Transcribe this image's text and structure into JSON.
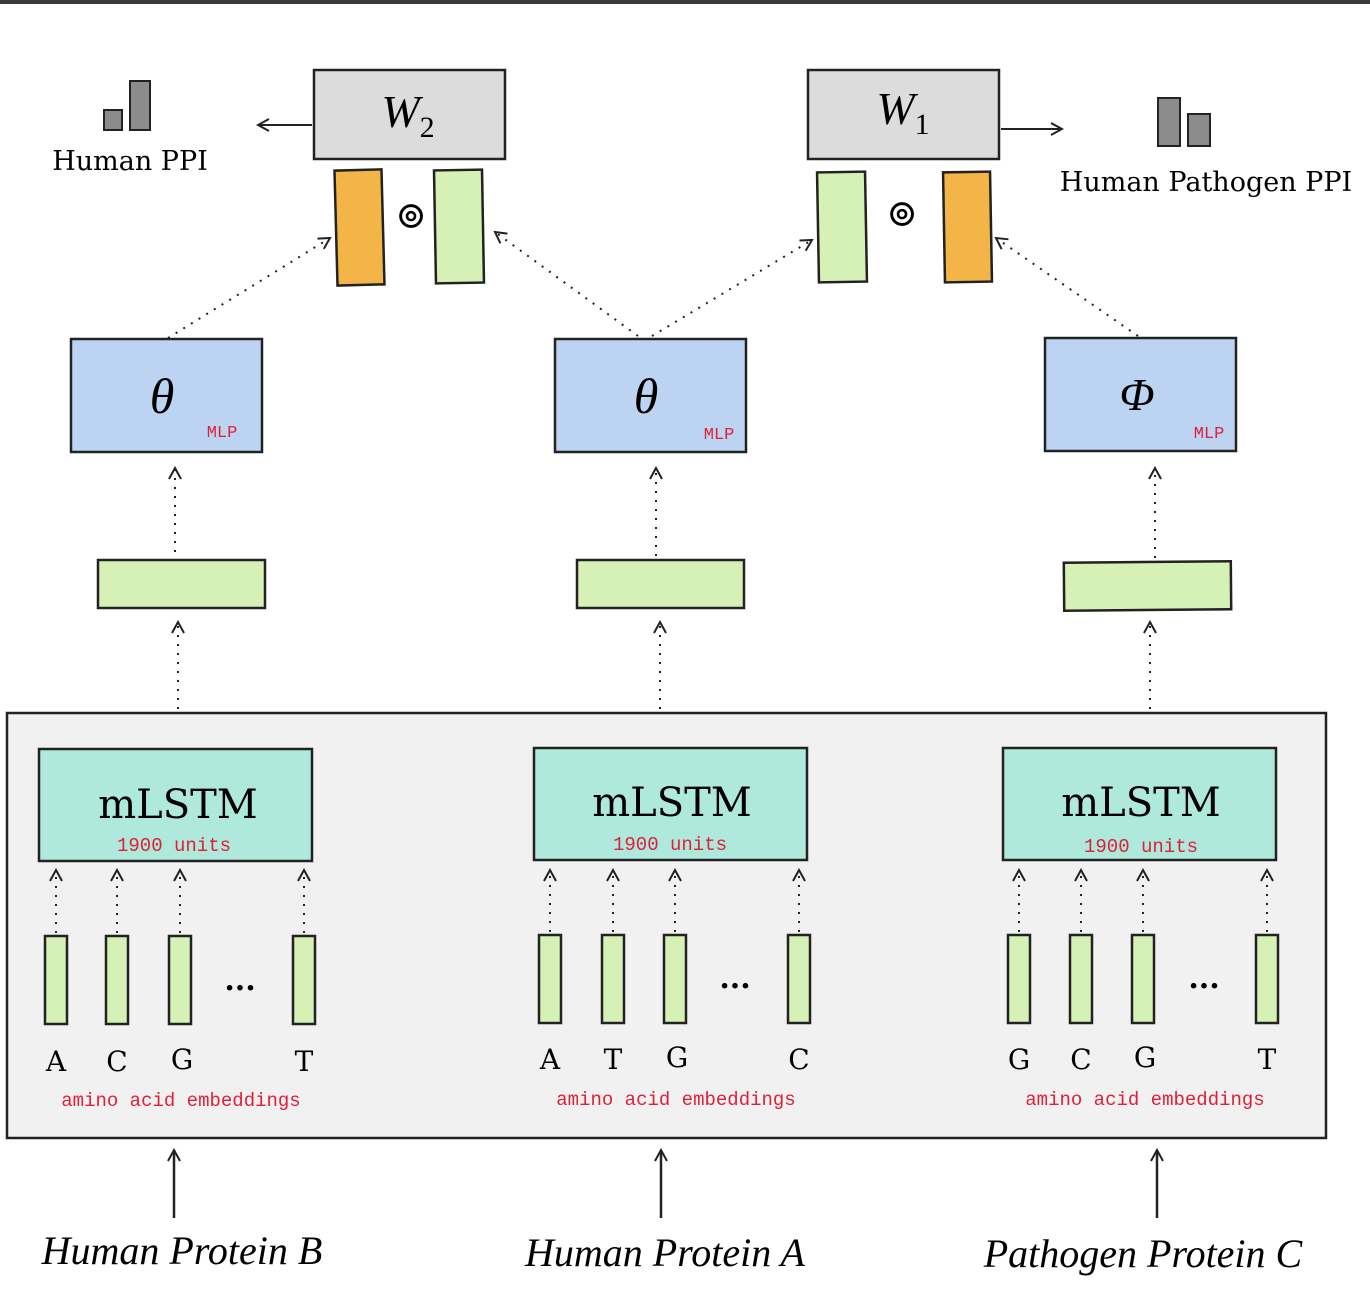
{
  "top_labels": {
    "human_ppi": "Human PPI",
    "human_pathogen_ppi": "Human Pathogen PPI"
  },
  "weights": {
    "w2": {
      "base": "W",
      "sub": "2"
    },
    "w1": {
      "base": "W",
      "sub": "1"
    }
  },
  "hadamard_symbol": "⊚",
  "mlp_blocks": [
    {
      "symbol": "θ",
      "tag": "MLP"
    },
    {
      "symbol": "θ",
      "tag": "MLP"
    },
    {
      "symbol": "Φ",
      "tag": "MLP"
    }
  ],
  "encoders": [
    {
      "title": "mLSTM",
      "units": "1900 units",
      "tokens": [
        "A",
        "C",
        "G",
        "T"
      ],
      "ellipsis": "...",
      "emb_label": "amino acid embeddings",
      "input": "Human Protein B"
    },
    {
      "title": "mLSTM",
      "units": "1900 units",
      "tokens": [
        "A",
        "T",
        "G",
        "C"
      ],
      "ellipsis": "...",
      "emb_label": "amino acid embeddings",
      "input": "Human Protein A"
    },
    {
      "title": "mLSTM",
      "units": "1900 units",
      "tokens": [
        "G",
        "C",
        "G",
        "T"
      ],
      "ellipsis": "...",
      "emb_label": "amino acid embeddings",
      "input": "Pathogen Protein C"
    }
  ],
  "colors": {
    "grey_box": "#dcdcdc",
    "orange": "#f3b548",
    "green": "#d5f1b6",
    "blue": "#bcd4f2",
    "teal": "#aee9dc",
    "panel": "#f1f1f1",
    "red_text": "#e0203a",
    "border": "#222222"
  }
}
